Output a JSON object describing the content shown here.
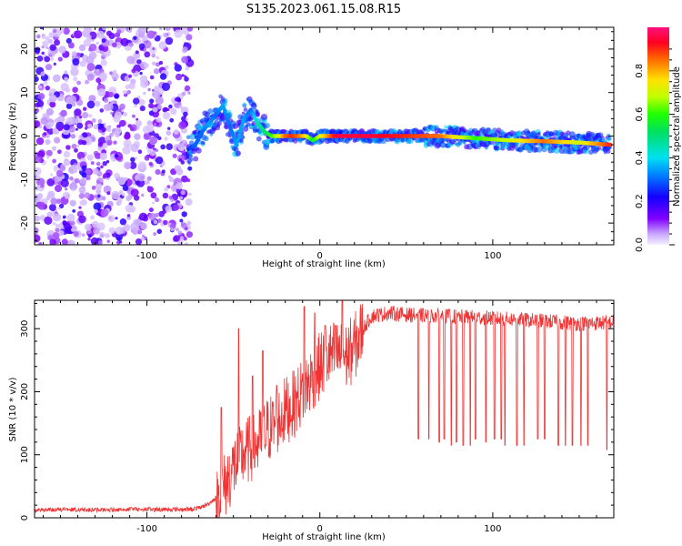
{
  "title": "S135.2023.061.15.08.R15",
  "chart_data": [
    {
      "type": "heatmap",
      "xlabel": "Height of straight line (km)",
      "ylabel": "Frequency (Hz)",
      "xlim": [
        -165,
        170
      ],
      "ylim": [
        -25,
        25
      ],
      "xticks": [
        -100,
        0,
        100
      ],
      "xtick_labels": [
        "-100",
        "0",
        "100"
      ],
      "yticks": [
        -20,
        -10,
        0,
        10,
        20
      ],
      "ytick_labels": [
        "-20",
        "-10",
        "0",
        "10",
        "20"
      ],
      "colorbar": {
        "label": "Normalized spectral amplitude",
        "range": [
          0,
          1
        ],
        "ticks": [
          0.0,
          0.2,
          0.4,
          0.6,
          0.8
        ],
        "tick_labels": [
          "0.0",
          "0.2",
          "0.4",
          "0.6",
          "0.8"
        ],
        "colormap": "rainbow (violet to red)"
      },
      "noise_region_x": [
        -165,
        -75
      ],
      "ridge": {
        "x": [
          -76,
          -72,
          -68,
          -64,
          -60,
          -56,
          -52,
          -48,
          -44,
          -40,
          -36,
          -32,
          -28,
          -24,
          -20,
          -16,
          -12,
          -8,
          -4,
          0,
          10,
          30,
          50,
          70,
          90,
          110,
          130,
          150,
          168
        ],
        "y": [
          -3,
          -2,
          1,
          3,
          5,
          7,
          2,
          -2,
          4,
          6,
          3,
          1,
          0,
          0,
          0,
          0,
          0,
          0,
          -1,
          0,
          0,
          0,
          0,
          0,
          -0.5,
          -1,
          -1.2,
          -1.5,
          -2
        ],
        "amplitude": [
          0.25,
          0.3,
          0.3,
          0.35,
          0.3,
          0.35,
          0.3,
          0.35,
          0.35,
          0.3,
          0.45,
          0.5,
          0.6,
          0.7,
          0.85,
          0.9,
          0.85,
          0.75,
          0.55,
          0.7,
          0.95,
          0.95,
          0.9,
          0.85,
          0.6,
          0.7,
          0.85,
          0.7,
          0.9
        ]
      }
    },
    {
      "type": "line",
      "xlabel": "Height of straight line (km)",
      "ylabel": "SNR (10 * v/v)",
      "xlim": [
        -165,
        170
      ],
      "ylim": [
        0,
        345
      ],
      "xticks": [
        -100,
        0,
        100
      ],
      "xtick_labels": [
        "-100",
        "0",
        "100"
      ],
      "yticks": [
        0,
        100,
        200,
        300
      ],
      "ytick_labels": [
        "0",
        "100",
        "200",
        "300"
      ],
      "color": "#f03232",
      "series": [
        {
          "x": [
            -165,
            -150,
            -130,
            -110,
            -90,
            -75,
            -70,
            -65,
            -60,
            -55,
            -50,
            -45,
            -40,
            -35,
            -30,
            -25,
            -20,
            -15,
            -10,
            -5,
            0,
            5,
            10,
            15,
            20,
            25,
            30,
            40,
            50,
            70,
            90,
            110,
            130,
            150,
            170
          ],
          "values": [
            10,
            12,
            11,
            12,
            12,
            12,
            14,
            20,
            30,
            50,
            80,
            100,
            110,
            120,
            140,
            150,
            170,
            180,
            200,
            220,
            240,
            255,
            260,
            255,
            270,
            300,
            320,
            325,
            322,
            320,
            318,
            315,
            312,
            308,
            310
          ]
        }
      ],
      "dips_x": [
        57,
        63,
        69,
        72,
        76,
        79,
        83,
        87,
        90,
        96,
        101,
        105,
        107,
        114,
        118,
        126,
        130,
        138,
        142,
        146,
        151,
        155,
        166
      ],
      "dips_min": [
        125,
        125,
        120,
        125,
        115,
        120,
        115,
        115,
        125,
        120,
        125,
        125,
        115,
        115,
        115,
        125,
        125,
        115,
        115,
        115,
        115,
        115,
        108
      ],
      "spikes_x": [
        -57,
        -47,
        -39,
        -33,
        -25,
        -9,
        -3,
        3,
        9,
        13
      ],
      "spikes_max": [
        175,
        300,
        225,
        265,
        210,
        335,
        325,
        305,
        305,
        345
      ]
    }
  ]
}
